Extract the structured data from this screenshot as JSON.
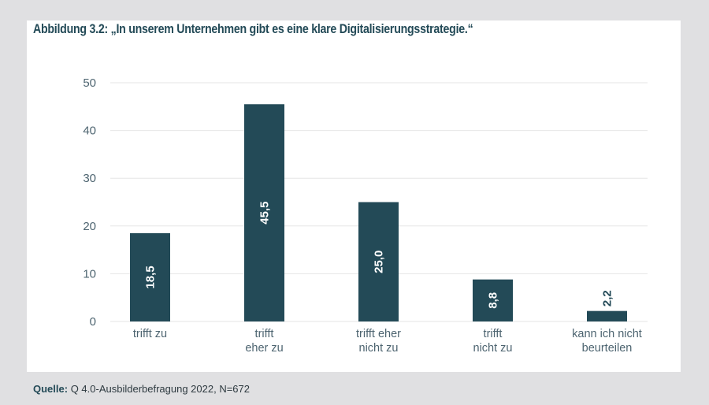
{
  "source": {
    "label": "Quelle:",
    "text": "Q 4.0-Ausbilderbefragung 2022, N=672"
  },
  "colors": {
    "bar": "#234a57",
    "title": "#234a57",
    "grid": "#e6e6e6",
    "axis_text": "#4d6470",
    "label_inside": "#ffffff"
  },
  "chart_data": {
    "type": "bar",
    "title": "Abbildung 3.2: „In unserem Unternehmen gibt es eine klare Digitalisierungsstrategie.“",
    "xlabel": "",
    "ylabel": "",
    "ylim": [
      0,
      50
    ],
    "yticks": [
      "0",
      "10",
      "20",
      "30",
      "40",
      "50"
    ],
    "grid": true,
    "categories": [
      [
        "trifft zu"
      ],
      [
        "trifft",
        "eher zu"
      ],
      [
        "trifft eher",
        "nicht zu"
      ],
      [
        "trifft",
        "nicht zu"
      ],
      [
        "kann ich nicht",
        "beurteilen"
      ]
    ],
    "values": [
      18.5,
      45.5,
      25.0,
      8.8,
      2.2
    ],
    "value_labels": [
      "18,5",
      "45,5",
      "25,0",
      "8,8",
      "2,2"
    ]
  }
}
